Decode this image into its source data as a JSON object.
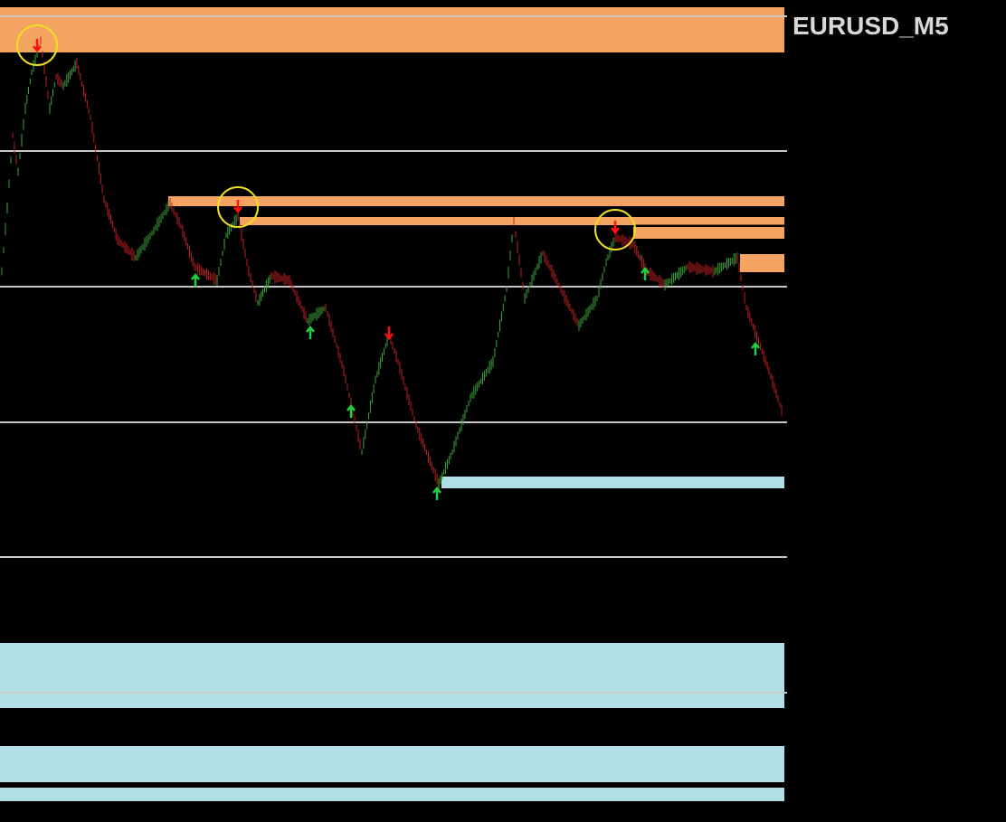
{
  "header": {
    "symbol": "EURUSD_M5"
  }
}
